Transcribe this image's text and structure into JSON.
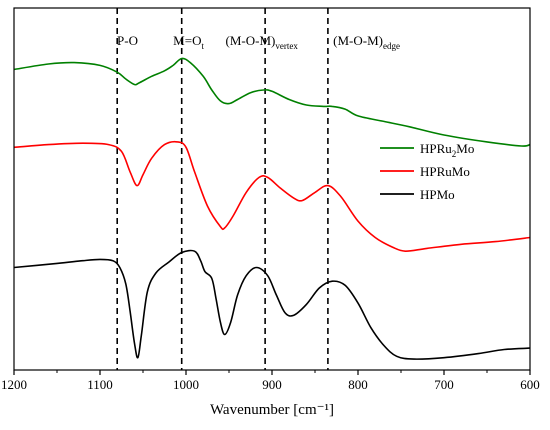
{
  "chart_data": {
    "type": "line",
    "title": "",
    "xlabel": "Wavenumber [cm⁻¹]",
    "ylabel": "",
    "xlim": [
      1200,
      600
    ],
    "x_reversed": true,
    "y_ticks_shown": false,
    "x_ticks": [
      1200,
      1100,
      1000,
      900,
      800,
      700,
      600
    ],
    "x_tick_labels": [
      "1200",
      "1100",
      "1000",
      "900",
      "800",
      "700",
      "600"
    ],
    "reference_lines": [
      1080,
      1005,
      908,
      835
    ],
    "annotations": [
      {
        "id": "po",
        "text": "P-O",
        "x": 1068
      },
      {
        "id": "mo",
        "text": "M=O",
        "sub": "t",
        "x": 997
      },
      {
        "id": "vertex",
        "text": "(M-O-M)",
        "sub": "vertex",
        "x": 912
      },
      {
        "id": "edge",
        "text": "(M-O-M)",
        "sub": "edge",
        "x": 790
      }
    ],
    "legend": {
      "position": "right",
      "entries": [
        {
          "text": "HPRu",
          "sub": "2",
          "text2": "Mo",
          "color": "#008000"
        },
        {
          "text": "HPRuMo",
          "sub": "",
          "text2": "",
          "color": "#ff0000"
        },
        {
          "text": "HPMo",
          "sub": "",
          "text2": "",
          "color": "#000000"
        }
      ]
    },
    "series": [
      {
        "name": "HPRu2Mo",
        "color": "#008000",
        "x": [
          1200,
          1160,
          1130,
          1100,
          1080,
          1070,
          1060,
          1055,
          1040,
          1025,
          1015,
          1005,
          995,
          980,
          970,
          960,
          950,
          940,
          925,
          910,
          900,
          880,
          860,
          840,
          830,
          815,
          800,
          770,
          740,
          700,
          650,
          610,
          600
        ],
        "y": [
          0.85,
          0.89,
          0.9,
          0.88,
          0.83,
          0.78,
          0.74,
          0.75,
          0.8,
          0.84,
          0.88,
          0.93,
          0.9,
          0.8,
          0.7,
          0.62,
          0.6,
          0.63,
          0.68,
          0.7,
          0.69,
          0.63,
          0.59,
          0.58,
          0.58,
          0.56,
          0.51,
          0.47,
          0.43,
          0.37,
          0.32,
          0.29,
          0.3
        ]
      },
      {
        "name": "HPRuMo",
        "color": "#ff0000",
        "x": [
          1200,
          1160,
          1120,
          1090,
          1075,
          1065,
          1057,
          1050,
          1040,
          1025,
          1010,
          1000,
          990,
          975,
          960,
          955,
          945,
          930,
          915,
          905,
          890,
          875,
          865,
          850,
          835,
          820,
          800,
          780,
          760,
          745,
          720,
          680,
          640,
          600
        ],
        "y": [
          0.28,
          0.3,
          0.31,
          0.3,
          0.25,
          0.1,
          0.0,
          0.08,
          0.2,
          0.3,
          0.32,
          0.28,
          0.1,
          -0.15,
          -0.3,
          -0.31,
          -0.22,
          -0.05,
          0.06,
          0.06,
          -0.02,
          -0.09,
          -0.11,
          -0.05,
          0.0,
          -0.08,
          -0.26,
          -0.38,
          -0.45,
          -0.48,
          -0.46,
          -0.43,
          -0.41,
          -0.38
        ]
      },
      {
        "name": "HPMo",
        "color": "#000000",
        "x": [
          1200,
          1150,
          1120,
          1100,
          1085,
          1077,
          1070,
          1065,
          1060,
          1056,
          1052,
          1045,
          1035,
          1020,
          1005,
          990,
          983,
          978,
          970,
          965,
          960,
          955,
          948,
          940,
          930,
          918,
          905,
          895,
          885,
          875,
          860,
          845,
          830,
          815,
          800,
          785,
          770,
          755,
          735,
          700,
          660,
          630,
          600
        ],
        "y": [
          -0.6,
          -0.57,
          -0.55,
          -0.54,
          -0.55,
          -0.6,
          -0.72,
          -0.92,
          -1.15,
          -1.26,
          -1.1,
          -0.78,
          -0.64,
          -0.56,
          -0.49,
          -0.48,
          -0.55,
          -0.63,
          -0.68,
          -0.83,
          -1.0,
          -1.09,
          -1.0,
          -0.8,
          -0.66,
          -0.6,
          -0.66,
          -0.8,
          -0.93,
          -0.95,
          -0.87,
          -0.75,
          -0.7,
          -0.73,
          -0.86,
          -1.04,
          -1.17,
          -1.25,
          -1.27,
          -1.26,
          -1.23,
          -1.2,
          -1.19
        ]
      }
    ]
  }
}
